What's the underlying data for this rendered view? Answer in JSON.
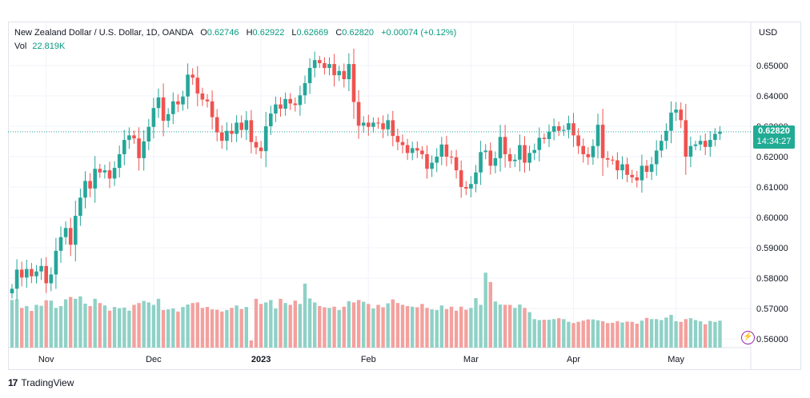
{
  "symbol": "New Zealand Dollar / U.S. Dollar, 1D, OANDA",
  "ohlc": {
    "o_label": "O",
    "o": "0.62746",
    "h_label": "H",
    "h": "0.62922",
    "l_label": "L",
    "l": "0.62669",
    "c_label": "C",
    "c": "0.62820",
    "change": "+0.00074 (+0.12%)"
  },
  "volume": {
    "label": "Vol",
    "value": "22.819K"
  },
  "currency": "USD",
  "last_price": {
    "value": "0.62820",
    "countdown": "14:34:27"
  },
  "brand": "TradingView",
  "colors": {
    "up": "#26a69a",
    "down": "#ef5350",
    "up_vol": "#8fd1c6",
    "down_vol": "#f3a19e",
    "last_price_line": "#26a69a"
  },
  "chart_data": {
    "type": "candlestick",
    "y_axis": {
      "ticks": [
        "0.65000",
        "0.64000",
        "0.63000",
        "0.62000",
        "0.61000",
        "0.60000",
        "0.59000",
        "0.58000",
        "0.57000",
        "0.56000"
      ],
      "ylim": [
        0.5575,
        0.6535
      ]
    },
    "x_axis": {
      "ticks": [
        "Nov",
        "Dec",
        "2023",
        "Feb",
        "Mar",
        "Apr",
        "May"
      ],
      "tick_index": [
        7,
        29,
        51,
        73,
        94,
        115,
        136
      ]
    },
    "grid": true,
    "closes": [
      0.5765,
      0.5828,
      0.5802,
      0.583,
      0.5806,
      0.5822,
      0.584,
      0.5783,
      0.5812,
      0.589,
      0.5935,
      0.5965,
      0.591,
      0.6005,
      0.6065,
      0.612,
      0.6095,
      0.616,
      0.6148,
      0.6155,
      0.6128,
      0.6163,
      0.6208,
      0.6255,
      0.627,
      0.626,
      0.6195,
      0.625,
      0.6298,
      0.636,
      0.6395,
      0.6318,
      0.634,
      0.6382,
      0.6372,
      0.6398,
      0.647,
      0.646,
      0.6408,
      0.6388,
      0.6382,
      0.633,
      0.628,
      0.6252,
      0.6285,
      0.6275,
      0.6312,
      0.6288,
      0.632,
      0.6248,
      0.623,
      0.6218,
      0.63,
      0.6342,
      0.6372,
      0.6358,
      0.639,
      0.6375,
      0.637,
      0.6402,
      0.6442,
      0.6492,
      0.6518,
      0.6508,
      0.6492,
      0.6505,
      0.6468,
      0.6482,
      0.6455,
      0.6505,
      0.638,
      0.6302,
      0.6312,
      0.6298,
      0.6312,
      0.631,
      0.629,
      0.632,
      0.6268,
      0.6248,
      0.6238,
      0.6212,
      0.6228,
      0.622,
      0.6208,
      0.616,
      0.618,
      0.62,
      0.624,
      0.62,
      0.6198,
      0.6155,
      0.61,
      0.6095,
      0.611,
      0.6148,
      0.6215,
      0.622,
      0.617,
      0.6195,
      0.6265,
      0.6208,
      0.6185,
      0.619,
      0.6238,
      0.618,
      0.6212,
      0.6222,
      0.6262,
      0.6258,
      0.6282,
      0.63,
      0.6285,
      0.6288,
      0.631,
      0.627,
      0.6235,
      0.6208,
      0.6198,
      0.6235,
      0.6305,
      0.6195,
      0.619,
      0.6188,
      0.6155,
      0.6175,
      0.614,
      0.6132,
      0.6122,
      0.617,
      0.615,
      0.6175,
      0.622,
      0.6252,
      0.6285,
      0.6345,
      0.6355,
      0.632,
      0.62,
      0.6235,
      0.624,
      0.6252,
      0.6232,
      0.6255,
      0.6275,
      0.6282
    ],
    "volumes": [
      0.5728,
      0.573,
      0.5702,
      0.5708,
      0.5692,
      0.5712,
      0.5709,
      0.5727,
      0.5726,
      0.5702,
      0.5708,
      0.573,
      0.5738,
      0.5732,
      0.574,
      0.5716,
      0.5708,
      0.5732,
      0.5718,
      0.571,
      0.5693,
      0.5705,
      0.5701,
      0.5703,
      0.5693,
      0.5712,
      0.5718,
      0.5725,
      0.572,
      0.5712,
      0.5732,
      0.5695,
      0.5697,
      0.57,
      0.569,
      0.5705,
      0.5713,
      0.5718,
      0.572,
      0.5702,
      0.5705,
      0.5697,
      0.5696,
      0.569,
      0.5695,
      0.5702,
      0.571,
      0.5698,
      0.5705,
      0.5595,
      0.5732,
      0.5715,
      0.572,
      0.5728,
      0.57,
      0.5732,
      0.5718,
      0.5712,
      0.5726,
      0.5715,
      0.5782,
      0.5733,
      0.572,
      0.5708,
      0.5704,
      0.5702,
      0.5706,
      0.5695,
      0.5706,
      0.5724,
      0.572,
      0.5728,
      0.5722,
      0.5715,
      0.57,
      0.5712,
      0.5704,
      0.5717,
      0.573,
      0.5718,
      0.5712,
      0.5708,
      0.5706,
      0.5704,
      0.5715,
      0.5702,
      0.5697,
      0.5695,
      0.571,
      0.5698,
      0.5706,
      0.5693,
      0.5706,
      0.5696,
      0.5702,
      0.5734,
      0.5712,
      0.5818,
      0.5787,
      0.5723,
      0.5713,
      0.5712,
      0.5712,
      0.5702,
      0.5713,
      0.5702,
      0.5688,
      0.5665,
      0.5662,
      0.5663,
      0.5663,
      0.5665,
      0.5668,
      0.5665,
      0.5656,
      0.5652,
      0.5656,
      0.566,
      0.5664,
      0.5664,
      0.5661,
      0.5658,
      0.5652,
      0.5653,
      0.5658,
      0.5654,
      0.5657,
      0.5656,
      0.565,
      0.566,
      0.5669,
      0.5665,
      0.5665,
      0.5662,
      0.567,
      0.5679,
      0.5658,
      0.5656,
      0.5665,
      0.5668,
      0.5662,
      0.5658,
      0.5648,
      0.5659,
      0.5656,
      0.566
    ],
    "series": [
      {
        "name": "Vol"
      }
    ]
  }
}
